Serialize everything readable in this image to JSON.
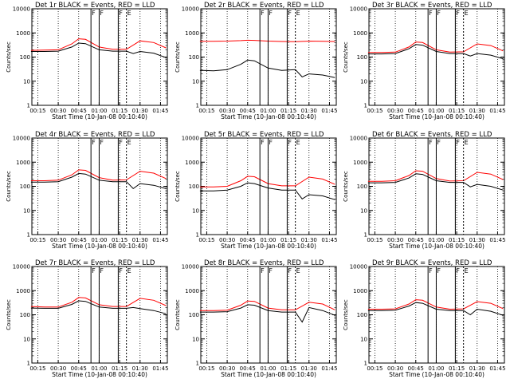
{
  "chart_data": [
    {
      "type": "line",
      "title": "Det 1r BLACK = Events, RED = LLD",
      "xlabel": "Start Time (10-Jan-08 00:10:40)",
      "ylabel": "Counts/sec",
      "yscale": "log",
      "ylim": [
        1,
        10000
      ],
      "grid": "vertical dotted",
      "xticks": [
        "00:15",
        "00:30",
        "00:45",
        "01:00",
        "01:15",
        "01:30",
        "01:45"
      ],
      "yticks": [
        "1",
        "10",
        "100",
        "1000",
        "10000"
      ],
      "markers": [
        "F",
        "F",
        "F",
        "E"
      ],
      "series": [
        {
          "name": "",
          "color": "#ff0000",
          "x": [
            "00:10",
            "00:20",
            "00:30",
            "00:40",
            "00:45",
            "00:50",
            "01:00",
            "01:10",
            "01:20",
            "01:30",
            "01:40",
            "01:49"
          ],
          "values": [
            190,
            195,
            200,
            350,
            570,
            540,
            260,
            210,
            210,
            470,
            400,
            240
          ]
        },
        {
          "name": "",
          "color": "#000000",
          "x": [
            "00:10",
            "00:20",
            "00:30",
            "00:40",
            "00:45",
            "00:50",
            "01:00",
            "01:10",
            "01:20",
            "01:25",
            "01:30",
            "01:40",
            "01:49"
          ],
          "values": [
            170,
            170,
            175,
            260,
            380,
            360,
            200,
            175,
            175,
            140,
            170,
            145,
            95
          ]
        }
      ]
    },
    {
      "type": "line",
      "title": "Det 2r BLACK = Events, RED = LLD",
      "xlabel": "Start Time (10-Jan-08 00:10:40)",
      "ylabel": "Counts/sec",
      "yscale": "log",
      "ylim": [
        1,
        10000
      ],
      "grid": "vertical dotted",
      "xticks": [
        "00:15",
        "00:30",
        "00:45",
        "01:00",
        "01:15",
        "01:30",
        "01:45"
      ],
      "yticks": [
        "1",
        "10",
        "100",
        "1000",
        "10000"
      ],
      "markers": [
        "F",
        "F",
        "F",
        "E"
      ],
      "series": [
        {
          "name": "",
          "color": "#ff0000",
          "x": [
            "00:10",
            "00:20",
            "00:30",
            "00:40",
            "00:45",
            "00:50",
            "01:00",
            "01:10",
            "01:20",
            "01:30",
            "01:40",
            "01:49"
          ],
          "values": [
            450,
            450,
            460,
            480,
            500,
            490,
            460,
            440,
            430,
            460,
            450,
            440
          ]
        },
        {
          "name": "",
          "color": "#000000",
          "x": [
            "00:10",
            "00:20",
            "00:30",
            "00:40",
            "00:45",
            "00:50",
            "01:00",
            "01:10",
            "01:20",
            "01:25",
            "01:30",
            "01:40",
            "01:49"
          ],
          "values": [
            28,
            27,
            30,
            50,
            75,
            70,
            35,
            28,
            30,
            15,
            20,
            18,
            14
          ]
        }
      ]
    },
    {
      "type": "line",
      "title": "Det 3r BLACK = Events, RED = LLD",
      "xlabel": "Start Time (10-Jan-08 00:10:40)",
      "ylabel": "Counts/sec",
      "yscale": "log",
      "ylim": [
        1,
        10000
      ],
      "grid": "vertical dotted",
      "xticks": [
        "00:15",
        "00:30",
        "00:45",
        "01:00",
        "01:15",
        "01:30",
        "01:45"
      ],
      "yticks": [
        "1",
        "10",
        "100",
        "1000",
        "10000"
      ],
      "markers": [
        "F",
        "F",
        "F",
        "E"
      ],
      "series": [
        {
          "name": "",
          "color": "#ff0000",
          "x": [
            "00:10",
            "00:20",
            "00:30",
            "00:40",
            "00:45",
            "00:50",
            "01:00",
            "01:10",
            "01:20",
            "01:30",
            "01:40",
            "01:49"
          ],
          "values": [
            155,
            155,
            160,
            260,
            420,
            400,
            200,
            160,
            165,
            350,
            300,
            180
          ]
        },
        {
          "name": "",
          "color": "#000000",
          "x": [
            "00:10",
            "00:20",
            "00:30",
            "00:40",
            "00:45",
            "00:50",
            "01:00",
            "01:10",
            "01:20",
            "01:25",
            "01:30",
            "01:40",
            "01:49"
          ],
          "values": [
            135,
            135,
            140,
            220,
            330,
            310,
            170,
            140,
            140,
            110,
            140,
            120,
            85
          ]
        }
      ]
    },
    {
      "type": "line",
      "title": "Det 4r BLACK = Events, RED = LLD",
      "xlabel": "Start Time (10-Jan-08 00:10:40)",
      "ylabel": "Counts/sec",
      "yscale": "log",
      "ylim": [
        1,
        10000
      ],
      "grid": "vertical dotted",
      "xticks": [
        "00:15",
        "00:30",
        "00:45",
        "01:00",
        "01:15",
        "01:30",
        "01:45"
      ],
      "yticks": [
        "1",
        "10",
        "100",
        "1000",
        "10000"
      ],
      "markers": [
        "F",
        "F",
        "F",
        "E"
      ],
      "series": [
        {
          "name": "",
          "color": "#ff0000",
          "x": [
            "00:10",
            "00:20",
            "00:30",
            "00:40",
            "00:45",
            "00:50",
            "01:00",
            "01:10",
            "01:20",
            "01:30",
            "01:40",
            "01:49"
          ],
          "values": [
            170,
            170,
            180,
            300,
            480,
            460,
            230,
            180,
            185,
            420,
            350,
            210
          ]
        },
        {
          "name": "",
          "color": "#000000",
          "x": [
            "00:10",
            "00:20",
            "00:30",
            "00:40",
            "00:45",
            "00:50",
            "01:00",
            "01:10",
            "01:20",
            "01:25",
            "01:30",
            "01:40",
            "01:49"
          ],
          "values": [
            150,
            150,
            155,
            240,
            340,
            320,
            180,
            155,
            155,
            80,
            130,
            110,
            80
          ]
        }
      ]
    },
    {
      "type": "line",
      "title": "Det 5r BLACK = Events, RED = LLD",
      "xlabel": "Start Time (10-Jan-08 00:10:40)",
      "ylabel": "Counts/sec",
      "yscale": "log",
      "ylim": [
        1,
        10000
      ],
      "grid": "vertical dotted",
      "xticks": [
        "00:15",
        "00:30",
        "00:45",
        "01:00",
        "01:15",
        "01:30",
        "01:45"
      ],
      "yticks": [
        "1",
        "10",
        "100",
        "1000",
        "10000"
      ],
      "markers": [
        "F",
        "F",
        "F",
        "E"
      ],
      "series": [
        {
          "name": "",
          "color": "#ff0000",
          "x": [
            "00:10",
            "00:20",
            "00:30",
            "00:40",
            "00:45",
            "00:50",
            "01:00",
            "01:10",
            "01:20",
            "01:30",
            "01:40",
            "01:49"
          ],
          "values": [
            95,
            95,
            100,
            170,
            260,
            250,
            130,
            105,
            105,
            240,
            200,
            120
          ]
        },
        {
          "name": "",
          "color": "#000000",
          "x": [
            "00:10",
            "00:20",
            "00:30",
            "00:40",
            "00:45",
            "00:50",
            "01:00",
            "01:10",
            "01:20",
            "01:25",
            "01:30",
            "01:40",
            "01:49"
          ],
          "values": [
            65,
            65,
            70,
            100,
            140,
            130,
            85,
            70,
            70,
            30,
            45,
            40,
            28
          ]
        }
      ]
    },
    {
      "type": "line",
      "title": "Det 6r BLACK = Events, RED = LLD",
      "xlabel": "Start Time (10-Jan-08 00:10:40)",
      "ylabel": "Counts/sec",
      "yscale": "log",
      "ylim": [
        1,
        10000
      ],
      "grid": "vertical dotted",
      "xticks": [
        "00:15",
        "00:30",
        "00:45",
        "01:00",
        "01:15",
        "01:30",
        "01:45"
      ],
      "yticks": [
        "1",
        "10",
        "100",
        "1000",
        "10000"
      ],
      "markers": [
        "F",
        "F",
        "F",
        "E"
      ],
      "series": [
        {
          "name": "",
          "color": "#ff0000",
          "x": [
            "00:10",
            "00:20",
            "00:30",
            "00:40",
            "00:45",
            "00:50",
            "01:00",
            "01:10",
            "01:20",
            "01:30",
            "01:40",
            "01:49"
          ],
          "values": [
            160,
            160,
            170,
            280,
            440,
            420,
            210,
            165,
            170,
            380,
            320,
            190
          ]
        },
        {
          "name": "",
          "color": "#000000",
          "x": [
            "00:10",
            "00:20",
            "00:30",
            "00:40",
            "00:45",
            "00:50",
            "01:00",
            "01:10",
            "01:20",
            "01:25",
            "01:30",
            "01:40",
            "01:49"
          ],
          "values": [
            140,
            140,
            145,
            220,
            330,
            310,
            170,
            145,
            145,
            95,
            120,
            100,
            70
          ]
        }
      ]
    },
    {
      "type": "line",
      "title": "Det 7r BLACK = Events, RED = LLD",
      "xlabel": "Start Time (10-Jan-08 00:10:40)",
      "ylabel": "Counts/sec",
      "yscale": "log",
      "ylim": [
        1,
        10000
      ],
      "grid": "vertical dotted",
      "xticks": [
        "00:15",
        "00:30",
        "00:45",
        "01:00",
        "01:15",
        "01:30",
        "01:45"
      ],
      "yticks": [
        "1",
        "10",
        "100",
        "1000",
        "10000"
      ],
      "markers": [
        "F",
        "F",
        "F",
        "E"
      ],
      "series": [
        {
          "name": "",
          "color": "#ff0000",
          "x": [
            "00:10",
            "00:20",
            "00:30",
            "00:40",
            "00:45",
            "00:50",
            "01:00",
            "01:10",
            "01:20",
            "01:30",
            "01:40",
            "01:49"
          ],
          "values": [
            220,
            210,
            210,
            330,
            520,
            500,
            260,
            220,
            220,
            480,
            400,
            240
          ]
        },
        {
          "name": "",
          "color": "#000000",
          "x": [
            "00:10",
            "00:20",
            "00:30",
            "00:40",
            "00:45",
            "00:50",
            "01:00",
            "01:10",
            "01:20",
            "01:25",
            "01:30",
            "01:40",
            "01:49"
          ],
          "values": [
            190,
            185,
            185,
            270,
            380,
            360,
            210,
            185,
            185,
            200,
            180,
            150,
            110
          ]
        }
      ]
    },
    {
      "type": "line",
      "title": "Det 8r BLACK = Events, RED = LLD",
      "xlabel": "Start Time (10-Jan-08 00:10:40)",
      "ylabel": "Counts/sec",
      "yscale": "log",
      "ylim": [
        1,
        10000
      ],
      "grid": "vertical dotted",
      "xticks": [
        "00:15",
        "00:30",
        "00:45",
        "01:00",
        "01:15",
        "01:30",
        "01:45"
      ],
      "yticks": [
        "1",
        "10",
        "100",
        "1000",
        "10000"
      ],
      "markers": [
        "F",
        "F",
        "F",
        "E"
      ],
      "series": [
        {
          "name": "",
          "color": "#ff0000",
          "x": [
            "00:10",
            "00:20",
            "00:30",
            "00:40",
            "00:45",
            "00:50",
            "01:00",
            "01:10",
            "01:20",
            "01:30",
            "01:40",
            "01:49"
          ],
          "values": [
            150,
            150,
            155,
            250,
            370,
            360,
            190,
            160,
            160,
            330,
            280,
            160
          ]
        },
        {
          "name": "",
          "color": "#000000",
          "x": [
            "00:10",
            "00:20",
            "00:30",
            "00:40",
            "00:45",
            "00:50",
            "01:00",
            "01:10",
            "01:20",
            "01:25",
            "01:30",
            "01:40",
            "01:49"
          ],
          "values": [
            130,
            130,
            135,
            190,
            260,
            250,
            150,
            130,
            130,
            50,
            200,
            150,
            95
          ]
        }
      ]
    },
    {
      "type": "line",
      "title": "Det 9r BLACK = Events, RED = LLD",
      "xlabel": "Start Time (10-Jan-08 00:10:40)",
      "ylabel": "Counts/sec",
      "yscale": "log",
      "ylim": [
        1,
        10000
      ],
      "grid": "vertical dotted",
      "xticks": [
        "00:15",
        "00:30",
        "00:45",
        "01:00",
        "01:15",
        "01:30",
        "01:45"
      ],
      "yticks": [
        "1",
        "10",
        "100",
        "1000",
        "10000"
      ],
      "markers": [
        "F",
        "F",
        "F",
        "E"
      ],
      "series": [
        {
          "name": "",
          "color": "#ff0000",
          "x": [
            "00:10",
            "00:20",
            "00:30",
            "00:40",
            "00:45",
            "00:50",
            "01:00",
            "01:10",
            "01:20",
            "01:30",
            "01:40",
            "01:49"
          ],
          "values": [
            170,
            170,
            175,
            280,
            420,
            400,
            210,
            170,
            175,
            350,
            300,
            180
          ]
        },
        {
          "name": "",
          "color": "#000000",
          "x": [
            "00:10",
            "00:20",
            "00:30",
            "00:40",
            "00:45",
            "00:50",
            "01:00",
            "01:10",
            "01:20",
            "01:25",
            "01:30",
            "01:40",
            "01:49"
          ],
          "values": [
            150,
            150,
            155,
            230,
            320,
            300,
            170,
            150,
            150,
            100,
            170,
            140,
            95
          ]
        }
      ]
    }
  ]
}
